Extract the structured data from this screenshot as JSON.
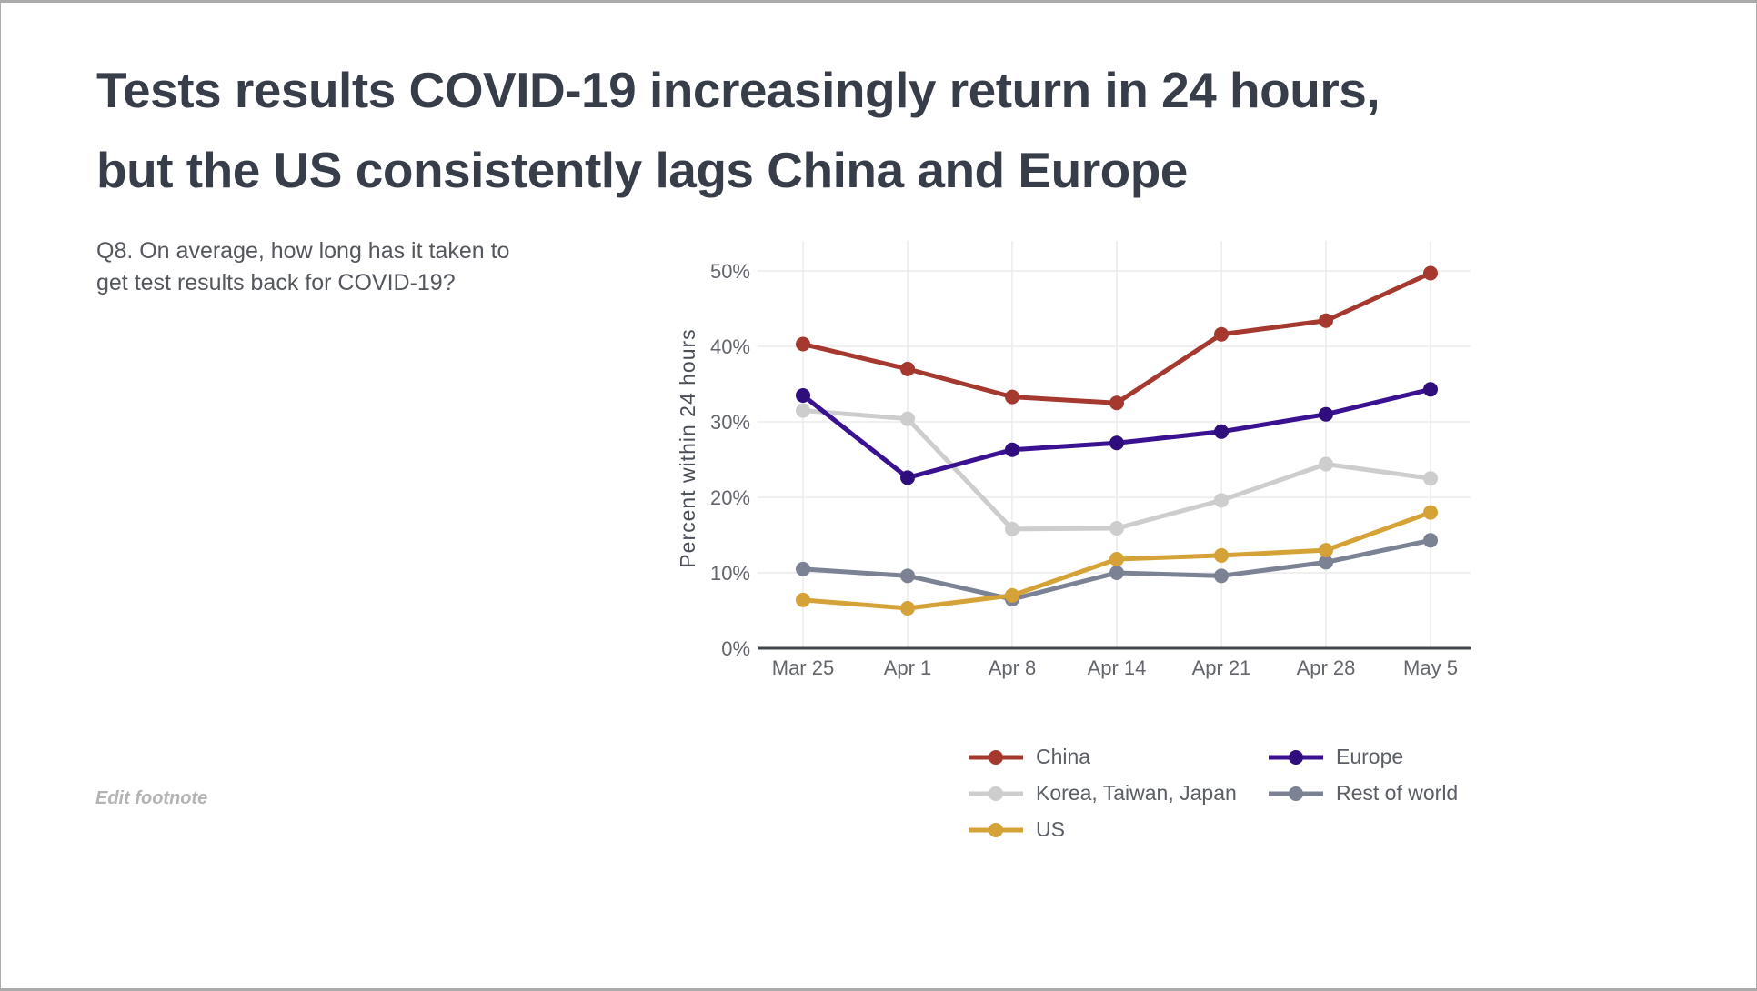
{
  "page": {
    "border_color": "#ababab",
    "background": "#ffffff"
  },
  "header": {
    "title": "Tests results COVID-19 increasingly return in 24 hours,\nbut the US consistently lags China and Europe"
  },
  "question": {
    "text": "Q8. On average, how long has it taken to\nget test results back for COVID-19?"
  },
  "footnote": {
    "label": "Edit footnote"
  },
  "chart_data": {
    "type": "line",
    "categories": [
      "Mar 25",
      "Apr 1",
      "Apr 8",
      "Apr 14",
      "Apr 21",
      "Apr 28",
      "May 5"
    ],
    "xlabel": "",
    "ylabel": "Percent within 24 hours",
    "ylim": [
      0,
      50
    ],
    "ytick_step": 10,
    "ytick_labels": [
      "0%",
      "10%",
      "20%",
      "30%",
      "40%",
      "50%"
    ],
    "grid": true,
    "legend_position": "bottom",
    "colors": {
      "gridline": "#ebebeb",
      "axis_line": "#42464d",
      "tick_text": "#63666c"
    },
    "series": [
      {
        "name": "China",
        "color": "#a5392f",
        "values": [
          40.3,
          37.0,
          33.3,
          32.5,
          41.6,
          43.4,
          49.7
        ],
        "draw_order": 5
      },
      {
        "name": "Europe",
        "color": "#3a1190",
        "marker_color": "#2f0d7c",
        "values": [
          33.5,
          22.6,
          26.3,
          27.2,
          28.7,
          31.0,
          34.3
        ],
        "draw_order": 4
      },
      {
        "name": "Korea, Taiwan, Japan",
        "color": "#cdcdcd",
        "values": [
          31.5,
          30.4,
          15.8,
          15.9,
          19.6,
          24.4,
          22.5
        ],
        "draw_order": 1
      },
      {
        "name": "Rest of world",
        "color": "#7b8294",
        "values": [
          10.5,
          9.6,
          6.5,
          10.0,
          9.6,
          11.4,
          14.3
        ],
        "draw_order": 2
      },
      {
        "name": "US",
        "color": "#d5a237",
        "values": [
          6.4,
          5.3,
          7.0,
          11.8,
          12.3,
          13.0,
          18.0
        ],
        "draw_order": 3
      }
    ]
  }
}
